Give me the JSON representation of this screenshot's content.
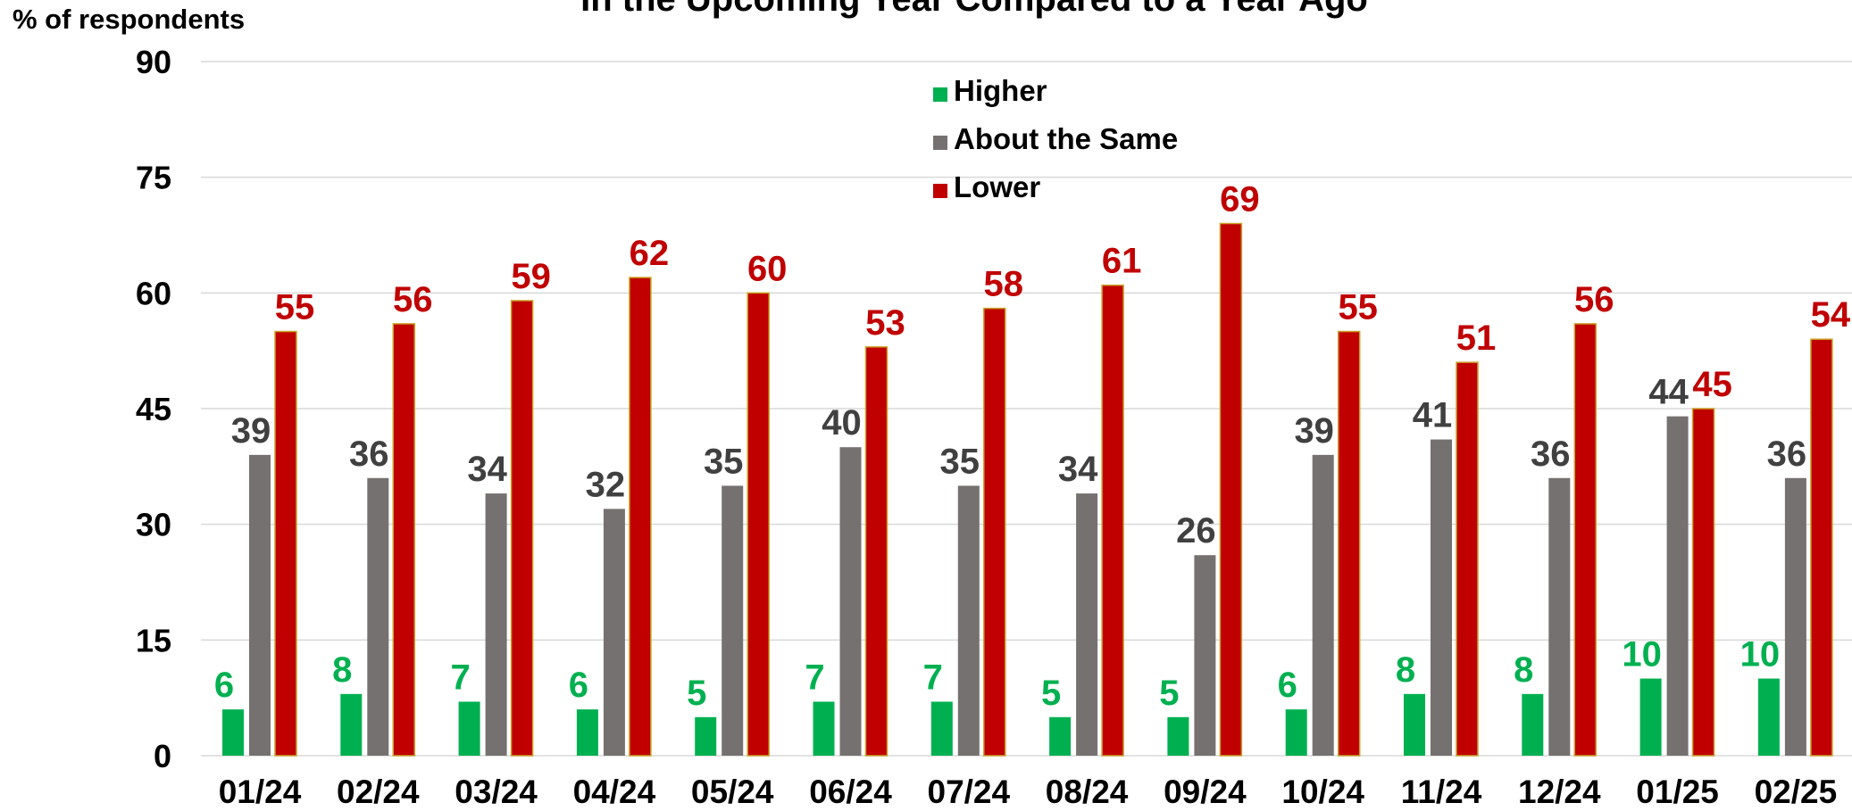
{
  "chart_data": {
    "type": "bar",
    "title": "In the Upcoming Year Compared to a Year Ago",
    "y_label": "% of respondents",
    "categories": [
      "01/24",
      "02/24",
      "03/24",
      "04/24",
      "05/24",
      "06/24",
      "07/24",
      "08/24",
      "09/24",
      "10/24",
      "11/24",
      "12/24",
      "01/25",
      "02/25"
    ],
    "series": [
      {
        "name": "Higher",
        "color": "#00b050",
        "values": [
          6,
          8,
          7,
          6,
          5,
          7,
          7,
          5,
          5,
          6,
          8,
          8,
          10,
          10
        ]
      },
      {
        "name": "About the Same",
        "color": "#767171",
        "values": [
          39,
          36,
          34,
          32,
          35,
          40,
          35,
          34,
          26,
          39,
          41,
          36,
          44,
          36
        ]
      },
      {
        "name": "Lower",
        "color": "#c00000",
        "values": [
          55,
          56,
          59,
          62,
          60,
          53,
          58,
          61,
          69,
          55,
          51,
          56,
          45,
          54
        ]
      }
    ],
    "ylim": [
      0,
      90
    ],
    "yticks": [
      0,
      15,
      30,
      45,
      60,
      75,
      90
    ],
    "grid": true,
    "legend": "top"
  }
}
